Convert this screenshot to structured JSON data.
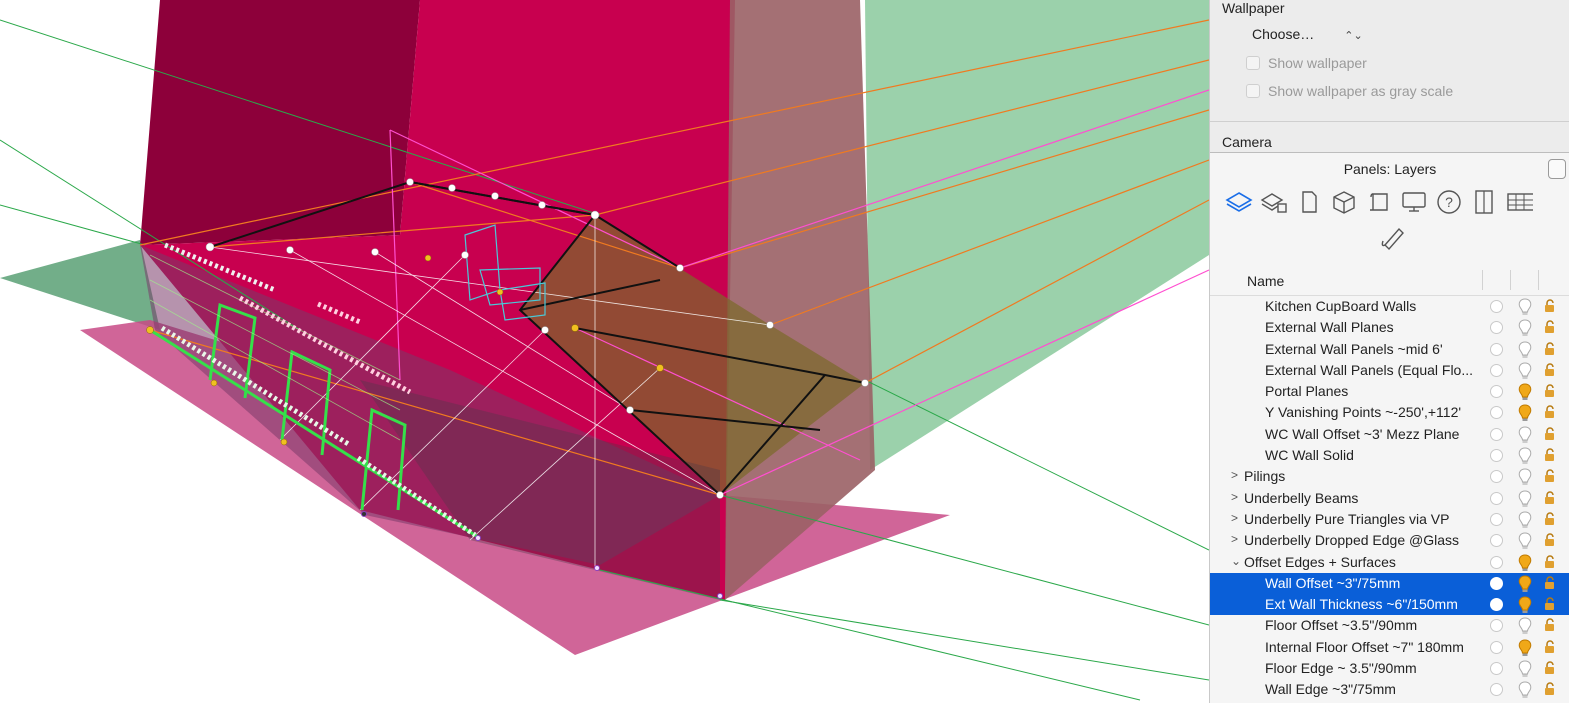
{
  "panel": {
    "wallpaper": {
      "title": "Wallpaper",
      "choose_label": "Choose…",
      "choose_arrows": "⌃⌄",
      "show_wallpaper": "Show wallpaper",
      "show_grayscale": "Show wallpaper as gray scale"
    },
    "camera": {
      "title": "Camera"
    },
    "layers_panel": {
      "title": "Panels: Layers",
      "tools": [
        "layers-icon",
        "layer-groups-icon",
        "page-icon",
        "cube-icon",
        "scroll-icon",
        "monitor-icon",
        "help-icon",
        "door-icon",
        "grid-icon",
        "tube-icon"
      ],
      "column_name": "Name",
      "layers": [
        {
          "name": "Kitchen CupBoard Walls",
          "indent": 2,
          "bulb": "off"
        },
        {
          "name": "External Wall Planes",
          "indent": 2,
          "bulb": "off"
        },
        {
          "name": "External Wall Panels ~mid 6'",
          "indent": 2,
          "bulb": "off"
        },
        {
          "name": "External Wall Panels (Equal Flo...",
          "indent": 2,
          "bulb": "off"
        },
        {
          "name": "Portal Planes",
          "indent": 2,
          "bulb": "on"
        },
        {
          "name": "Y Vanishing Points ~-250',+112'",
          "indent": 2,
          "bulb": "on"
        },
        {
          "name": "WC Wall Offset ~3' Mezz Plane",
          "indent": 2,
          "bulb": "off"
        },
        {
          "name": "WC Wall Solid",
          "indent": 2,
          "bulb": "off"
        },
        {
          "name": "Pilings",
          "indent": 1,
          "chevron": ">",
          "bulb": "off"
        },
        {
          "name": "Underbelly Beams",
          "indent": 1,
          "chevron": ">",
          "bulb": "off"
        },
        {
          "name": "Underbelly Pure Triangles via VP",
          "indent": 1,
          "chevron": ">",
          "bulb": "off"
        },
        {
          "name": "Underbelly Dropped Edge @Glass",
          "indent": 1,
          "chevron": ">",
          "bulb": "off"
        },
        {
          "name": "Offset Edges + Surfaces",
          "indent": 1,
          "chevron": "⌄",
          "bulb": "on"
        },
        {
          "name": "Wall Offset ~3\"/75mm",
          "indent": 2,
          "bulb": "on",
          "selected": true
        },
        {
          "name": "Ext Wall Thickness ~6\"/150mm",
          "indent": 2,
          "bulb": "on",
          "selected": true
        },
        {
          "name": "Floor Offset ~3.5\"/90mm",
          "indent": 2,
          "bulb": "off"
        },
        {
          "name": "Internal Floor Offset ~7\" 180mm",
          "indent": 2,
          "bulb": "on"
        },
        {
          "name": "Floor Edge ~ 3.5\"/90mm",
          "indent": 2,
          "bulb": "off"
        },
        {
          "name": "Wall Edge ~3\"/75mm",
          "indent": 2,
          "bulb": "off"
        }
      ]
    }
  },
  "colors": {
    "magenta_wall": "#c8004f",
    "dark_wall": "#8d003a",
    "green_plane": "#79c28f",
    "pink_floor": "#c84a86",
    "selection": "#0a5fd8",
    "bulb_on": "#f0a818"
  }
}
